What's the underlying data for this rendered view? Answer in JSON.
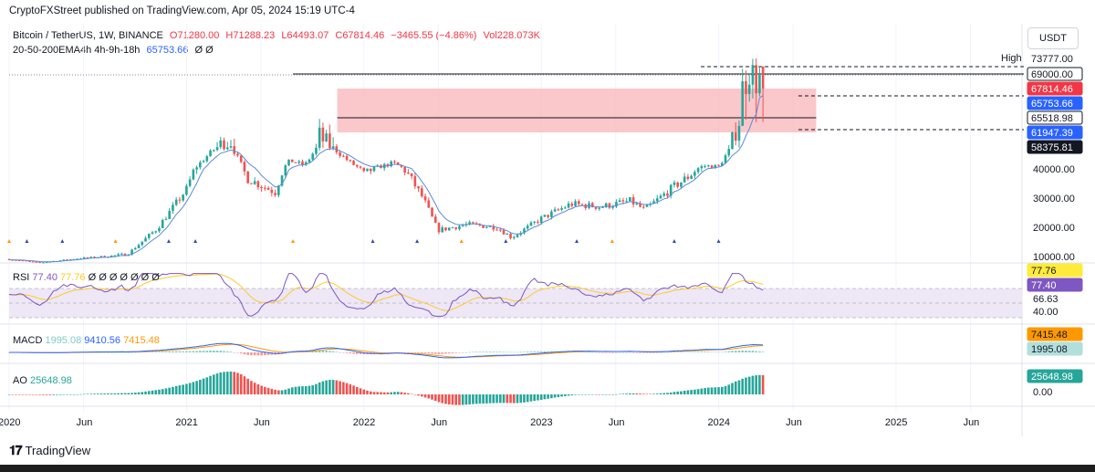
{
  "header": {
    "published": "CryptoFXStreet published on TradingView.com, Apr 05, 2024 15:19 UTC-4"
  },
  "legend": {
    "symbol": "Bitcoin / TetherUS, 1W, BINANCE",
    "open": "O71280.00",
    "high": "H71288.23",
    "low": "L64493.07",
    "close": "C67814.46",
    "change": "−3465.55 (−4.86%)",
    "volume": "Vol228.073K",
    "ema_label": "20-50-200EMA4h 4h-9h-18h",
    "ema_value": "65753.66",
    "ema_extra": "Ø  Ø"
  },
  "currency_button": "USDT",
  "price_axis": {
    "high_label": "High",
    "ticks": [
      "40000.00",
      "30000.00",
      "20000.00",
      "10000.00"
    ],
    "tags": [
      {
        "text": "73777.00",
        "bg": "#ffffff",
        "fg": "#131722"
      },
      {
        "text": "69000.00",
        "bg": "#ffffff",
        "fg": "#131722",
        "border": "#131722"
      },
      {
        "text": "67814.46",
        "bg": "#f23645",
        "fg": "#ffffff"
      },
      {
        "text": "65753.66",
        "bg": "#2962ff",
        "fg": "#ffffff"
      },
      {
        "text": "65518.98",
        "bg": "#ffffff",
        "fg": "#131722",
        "border": "#131722"
      },
      {
        "text": "61947.39",
        "bg": "#2962ff",
        "fg": "#ffffff"
      },
      {
        "text": "58375.81",
        "bg": "#131722",
        "fg": "#ffffff"
      }
    ]
  },
  "rsi": {
    "label": "RSI",
    "v1": "77.40",
    "v2": "77.76",
    "extra": "Ø Ø Ø Ø Ø Ø Ø",
    "tags": [
      {
        "text": "77.76",
        "bg": "#ffeb3b",
        "fg": "#131722"
      },
      {
        "text": "77.40",
        "bg": "#7e57c2",
        "fg": "#ffffff"
      }
    ],
    "levels": [
      "66.63",
      "40.00"
    ]
  },
  "macd": {
    "label": "MACD",
    "v1": "1995.08",
    "v2": "9410.56",
    "v3": "7415.48",
    "tags": [
      {
        "text": "7415.48",
        "bg": "#ff9800",
        "fg": "#131722"
      },
      {
        "text": "1995.08",
        "bg": "#b2dfdb",
        "fg": "#131722"
      }
    ]
  },
  "ao": {
    "label": "AO",
    "v1": "25648.98",
    "tags": [
      {
        "text": "25648.98",
        "bg": "#26a69a",
        "fg": "#ffffff"
      }
    ],
    "zero": "0.00"
  },
  "time_axis": [
    "2020",
    "Jun",
    "2021",
    "Jun",
    "2022",
    "Jun",
    "2023",
    "Jun",
    "2024",
    "Jun",
    "2025",
    "Jun"
  ],
  "footer": {
    "brand": "TradingView"
  },
  "colors": {
    "up": "#26a69a",
    "down": "#ef5350",
    "ema": "#5b8ad7",
    "zone": "#f8b4b8",
    "rsi_line": "#7e57c2",
    "rsi_ma": "#ffca28",
    "rsi_band": "#ede7f6",
    "macd": "#2962ff",
    "signal": "#ff9800"
  },
  "chart_data": {
    "type": "candlestick",
    "title": "Bitcoin / TetherUS, 1W, BINANCE",
    "y_ticks": [
      10000,
      20000,
      30000,
      40000
    ],
    "resistance_levels": [
      73777.0,
      69000.0,
      65518.98
    ],
    "zone": [
      61947.39,
      67814.46
    ],
    "last_close": 67814.46,
    "ema_last": 65753.66,
    "monthly_close_approx": [
      {
        "t": "2020-01",
        "c": 8500
      },
      {
        "t": "2020-03",
        "c": 6400
      },
      {
        "t": "2020-06",
        "c": 9200
      },
      {
        "t": "2020-09",
        "c": 10800
      },
      {
        "t": "2020-11",
        "c": 19500
      },
      {
        "t": "2021-01",
        "c": 33000
      },
      {
        "t": "2021-02",
        "c": 46000
      },
      {
        "t": "2021-03",
        "c": 58000
      },
      {
        "t": "2021-04",
        "c": 60000
      },
      {
        "t": "2021-05",
        "c": 37000
      },
      {
        "t": "2021-07",
        "c": 32000
      },
      {
        "t": "2021-08",
        "c": 47000
      },
      {
        "t": "2021-09",
        "c": 43000
      },
      {
        "t": "2021-10",
        "c": 61000
      },
      {
        "t": "2021-11",
        "c": 57000
      },
      {
        "t": "2021-12",
        "c": 46000
      },
      {
        "t": "2022-01",
        "c": 38000
      },
      {
        "t": "2022-03",
        "c": 45000
      },
      {
        "t": "2022-04",
        "c": 38000
      },
      {
        "t": "2022-05",
        "c": 30000
      },
      {
        "t": "2022-06",
        "c": 19000
      },
      {
        "t": "2022-08",
        "c": 21000
      },
      {
        "t": "2022-10",
        "c": 20000
      },
      {
        "t": "2022-11",
        "c": 16500
      },
      {
        "t": "2023-01",
        "c": 23000
      },
      {
        "t": "2023-03",
        "c": 28000
      },
      {
        "t": "2023-05",
        "c": 27000
      },
      {
        "t": "2023-07",
        "c": 29000
      },
      {
        "t": "2023-08",
        "c": 26000
      },
      {
        "t": "2023-10",
        "c": 34000
      },
      {
        "t": "2023-11",
        "c": 37500
      },
      {
        "t": "2023-12",
        "c": 42500
      },
      {
        "t": "2024-01",
        "c": 42000
      },
      {
        "t": "2024-02",
        "c": 61000
      },
      {
        "t": "2024-03",
        "c": 71000
      },
      {
        "t": "2024-04",
        "c": 67814
      }
    ]
  }
}
